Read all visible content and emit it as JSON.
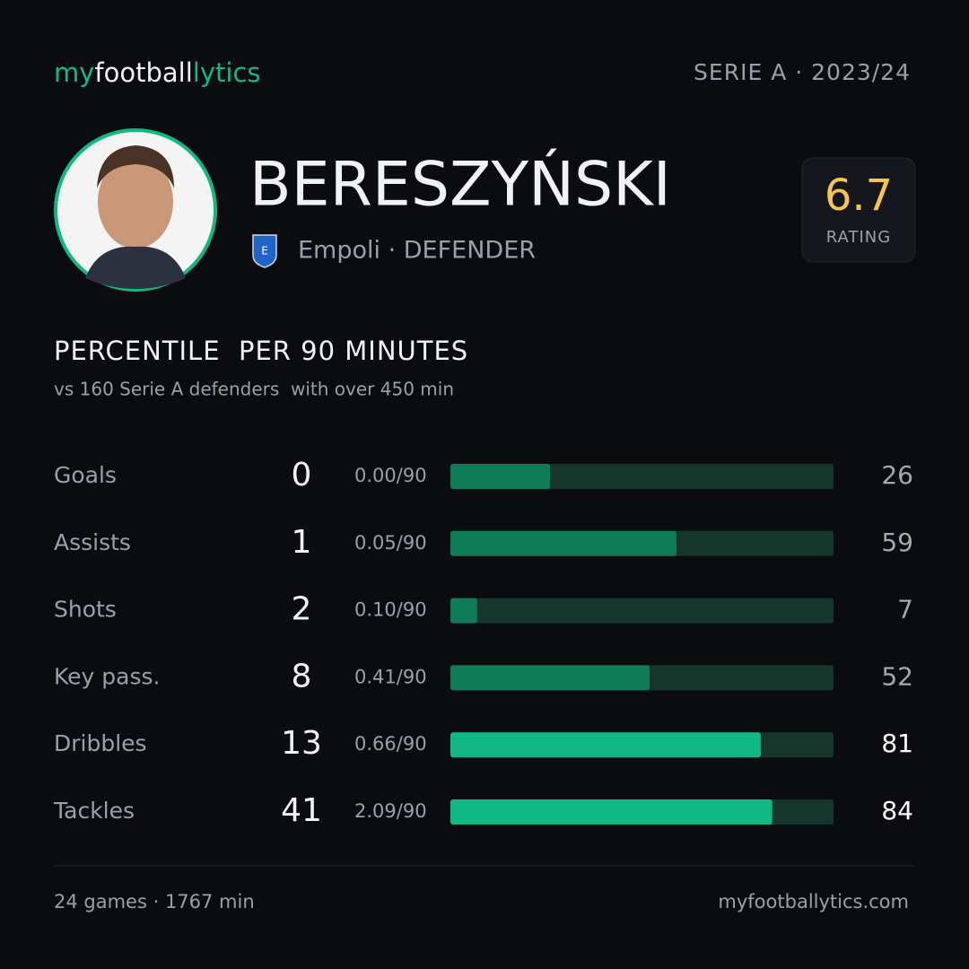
{
  "header": {
    "logo": [
      "my",
      "football",
      "lytics"
    ],
    "league": "SERIE A · 2023/24"
  },
  "player": {
    "name": "BERESZYŃSKI",
    "team_position": "Empoli · DEFENDER",
    "rating": 6.7,
    "rating_label": "RATING"
  },
  "section": {
    "title": "PERCENTILE  PER 90 MINUTES",
    "subtitle": "vs 160 Serie A defenders  with over 450 min"
  },
  "chart_data": {
    "type": "bar",
    "orientation": "horizontal",
    "categories": [
      "Goals",
      "Assists",
      "Shots",
      "Key pass.",
      "Dribbles",
      "Tackles"
    ],
    "totals": [
      0,
      1,
      2,
      8,
      13,
      41
    ],
    "per90_labels": [
      "0.00/90",
      "0.05/90",
      "0.10/90",
      "0.41/90",
      "0.66/90",
      "2.09/90"
    ],
    "values": [
      26,
      59,
      7,
      52,
      81,
      84
    ],
    "colors": [
      "#0e7a56",
      "#0e7a56",
      "#0e7a56",
      "#0e7a56",
      "#10b981",
      "#10b981"
    ],
    "value_label_colors": [
      "#a3a8b3",
      "#a3a8b3",
      "#a3a8b3",
      "#a3a8b3",
      "#ffffff",
      "#ffffff"
    ],
    "track_color": "#16352b",
    "xlim": [
      0,
      100
    ]
  },
  "footer": {
    "stats": "24 games · 1767 min",
    "site": "myfootballytics.com"
  }
}
